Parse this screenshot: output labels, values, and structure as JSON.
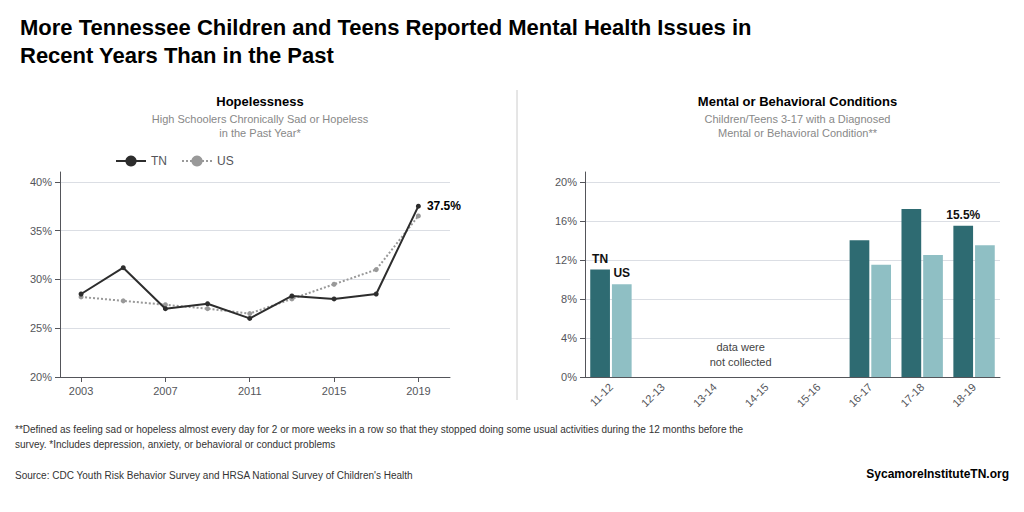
{
  "title": "More Tennessee Children and Teens Reported Mental Health Issues in\nRecent Years Than in the Past",
  "footnotes": [
    "**Defined as feeling sad or hopeless almost every day for 2 or more weeks in a row so that they stopped doing some usual activities during the 12 months before the",
    "survey. *Includes depression, anxiety, or behavioral or conduct problems",
    "Source: CDC Youth Risk Behavior Survey and HRSA National Survey of Children's Health"
  ],
  "source": "SycamoreInstituteTN.org",
  "chart_data": [
    {
      "type": "line",
      "title": "Hopelessness",
      "subtitle": "High Schoolers Chronically Sad or Hopeless\nin the Past Year*",
      "x": [
        2003,
        2005,
        2007,
        2009,
        2011,
        2013,
        2015,
        2017,
        2019
      ],
      "series": [
        {
          "name": "TN",
          "color": "#2d2d2d",
          "line_style": "solid",
          "marker": "circle",
          "values": [
            28.5,
            31.2,
            27.0,
            27.5,
            26.0,
            28.3,
            28.0,
            28.5,
            37.5
          ]
        },
        {
          "name": "US",
          "color": "#999999",
          "line_style": "dotted",
          "marker": "circle",
          "values": [
            28.2,
            27.8,
            27.4,
            27.0,
            26.5,
            28.0,
            29.5,
            31.0,
            36.5
          ]
        }
      ],
      "xlim": [
        2002,
        2020.5
      ],
      "xticks": [
        2003,
        2007,
        2011,
        2015,
        2019
      ],
      "ylim": [
        20,
        41
      ],
      "yticks": [
        {
          "value": 20,
          "label": "20%"
        },
        {
          "value": 25,
          "label": "25%"
        },
        {
          "value": 30,
          "label": "30%"
        },
        {
          "value": 35,
          "label": "35%"
        },
        {
          "value": 40,
          "label": "40%"
        }
      ],
      "grid": "y",
      "legend": "upper left",
      "annotations": [
        {
          "text": "37.5%",
          "x": 2019,
          "y": 37.5,
          "series": "TN"
        }
      ]
    },
    {
      "type": "bar",
      "title": "Mental or Behavioral Conditions",
      "subtitle": "Children/Teens 3-17 with a Diagnosed\nMental or Behavioral Condition**",
      "categories": [
        "11-12",
        "12-13",
        "13-14",
        "14-15",
        "15-16",
        "16-17",
        "17-18",
        "18-19"
      ],
      "series": [
        {
          "name": "TN",
          "color": "#2e6b72",
          "values": [
            11.0,
            0,
            0,
            0,
            0,
            14.0,
            17.2,
            15.5
          ]
        },
        {
          "name": "US",
          "color": "#8fbfc4",
          "values": [
            9.5,
            0,
            0,
            0,
            0,
            11.5,
            12.5,
            13.5
          ]
        }
      ],
      "ylim": [
        0,
        21
      ],
      "yticks": [
        {
          "value": 0,
          "label": "0%"
        },
        {
          "value": 4,
          "label": "4%"
        },
        {
          "value": 8,
          "label": "8%"
        },
        {
          "value": 12,
          "label": "12%"
        },
        {
          "value": 16,
          "label": "16%"
        },
        {
          "value": 20,
          "label": "20%"
        }
      ],
      "grid": "y",
      "annotations": [
        {
          "text": "data were\nnot collected",
          "span": [
            "12-13",
            "15-16"
          ]
        },
        {
          "text": "15.5%",
          "x": "18-19",
          "y": 15.5,
          "series": "TN"
        },
        {
          "text": "TN",
          "x": "11-12",
          "y": 11.0,
          "series": "TN"
        },
        {
          "text": "US",
          "x": "11-12",
          "y": 9.5,
          "series": "US"
        }
      ]
    }
  ]
}
